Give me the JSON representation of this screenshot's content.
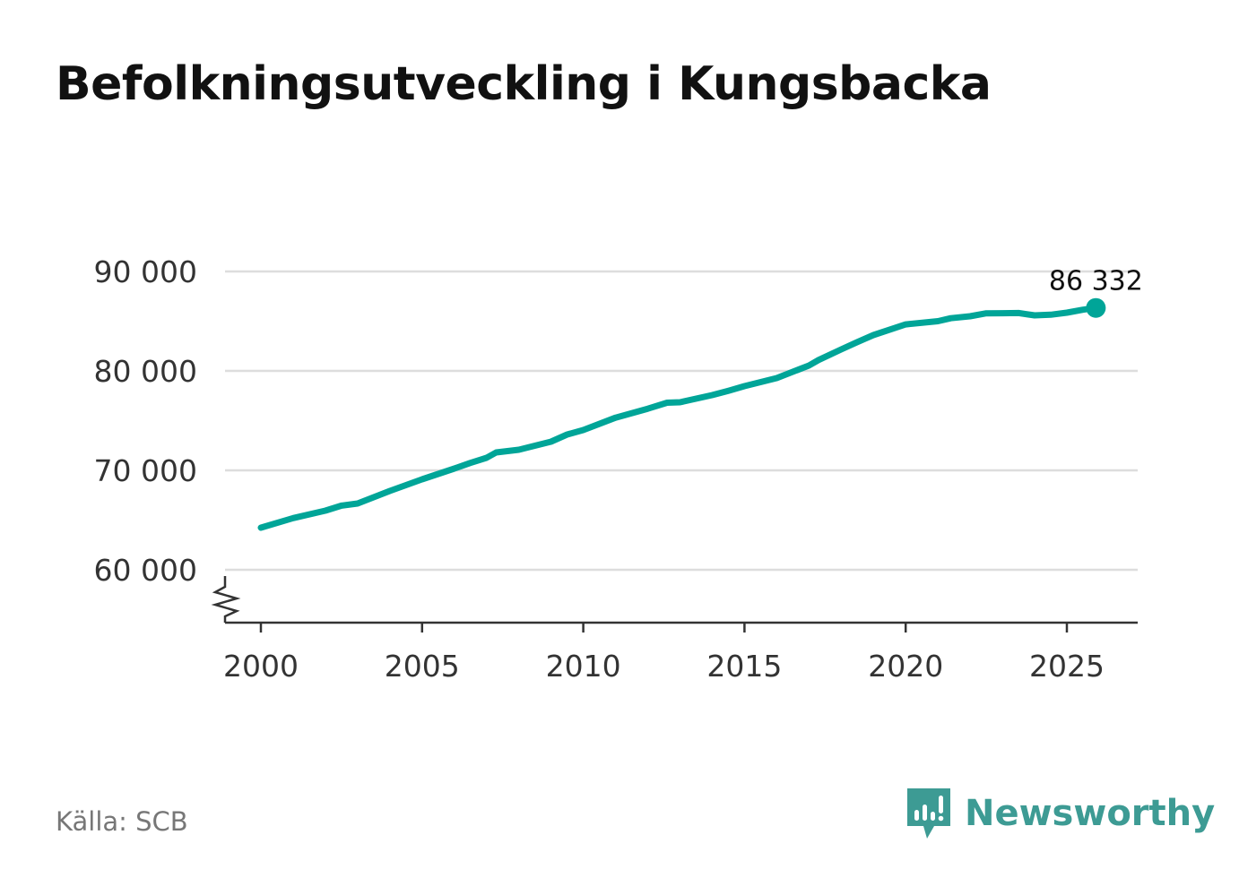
{
  "title": "Befolkningsutveckling i Kungsbacka",
  "source": "Källa: SCB",
  "brand": "Newsworthy",
  "colors": {
    "line": "#00a598",
    "grid": "#dddddd",
    "axis": "#333333",
    "brand": "#3d9b94"
  },
  "chart_data": {
    "type": "line",
    "title": "Befolkningsutveckling i Kungsbacka",
    "xlabel": "",
    "ylabel": "",
    "xlim": [
      1999,
      2027.2
    ],
    "ylim": [
      54700,
      90000
    ],
    "yticks": [
      60000,
      70000,
      80000,
      90000
    ],
    "ytick_labels": [
      "60 000",
      "70 000",
      "80 000",
      "90 000"
    ],
    "xticks": [
      2000,
      2005,
      2010,
      2015,
      2020,
      2025
    ],
    "xtick_labels": [
      "2000",
      "2005",
      "2010",
      "2015",
      "2020",
      "2025"
    ],
    "grid": true,
    "y_axis_break": true,
    "series": [
      {
        "name": "Befolkning",
        "x": [
          2000,
          2001,
          2002,
          2002.5,
          2003,
          2004,
          2005,
          2006,
          2006.5,
          2007,
          2007.3,
          2008,
          2009,
          2009.5,
          2010,
          2011,
          2012,
          2012.6,
          2013,
          2014,
          2014.5,
          2015,
          2016,
          2017,
          2017.3,
          2018,
          2018.5,
          2019,
          2020,
          2021,
          2021.4,
          2022,
          2022.5,
          2023,
          2023.5,
          2024,
          2024.5,
          2025,
          2025.5,
          2025.9
        ],
        "values": [
          64230,
          65200,
          65950,
          66450,
          66670,
          67930,
          69100,
          70180,
          70750,
          71260,
          71800,
          72070,
          72880,
          73600,
          74050,
          75300,
          76200,
          76800,
          76850,
          77570,
          78000,
          78470,
          79280,
          80540,
          81100,
          82160,
          82900,
          83600,
          84680,
          85000,
          85300,
          85500,
          85790,
          85800,
          85820,
          85590,
          85650,
          85860,
          86150,
          86332
        ]
      }
    ],
    "annotations": [
      {
        "x": 2025.9,
        "y": 86332,
        "label": "86 332"
      }
    ]
  }
}
